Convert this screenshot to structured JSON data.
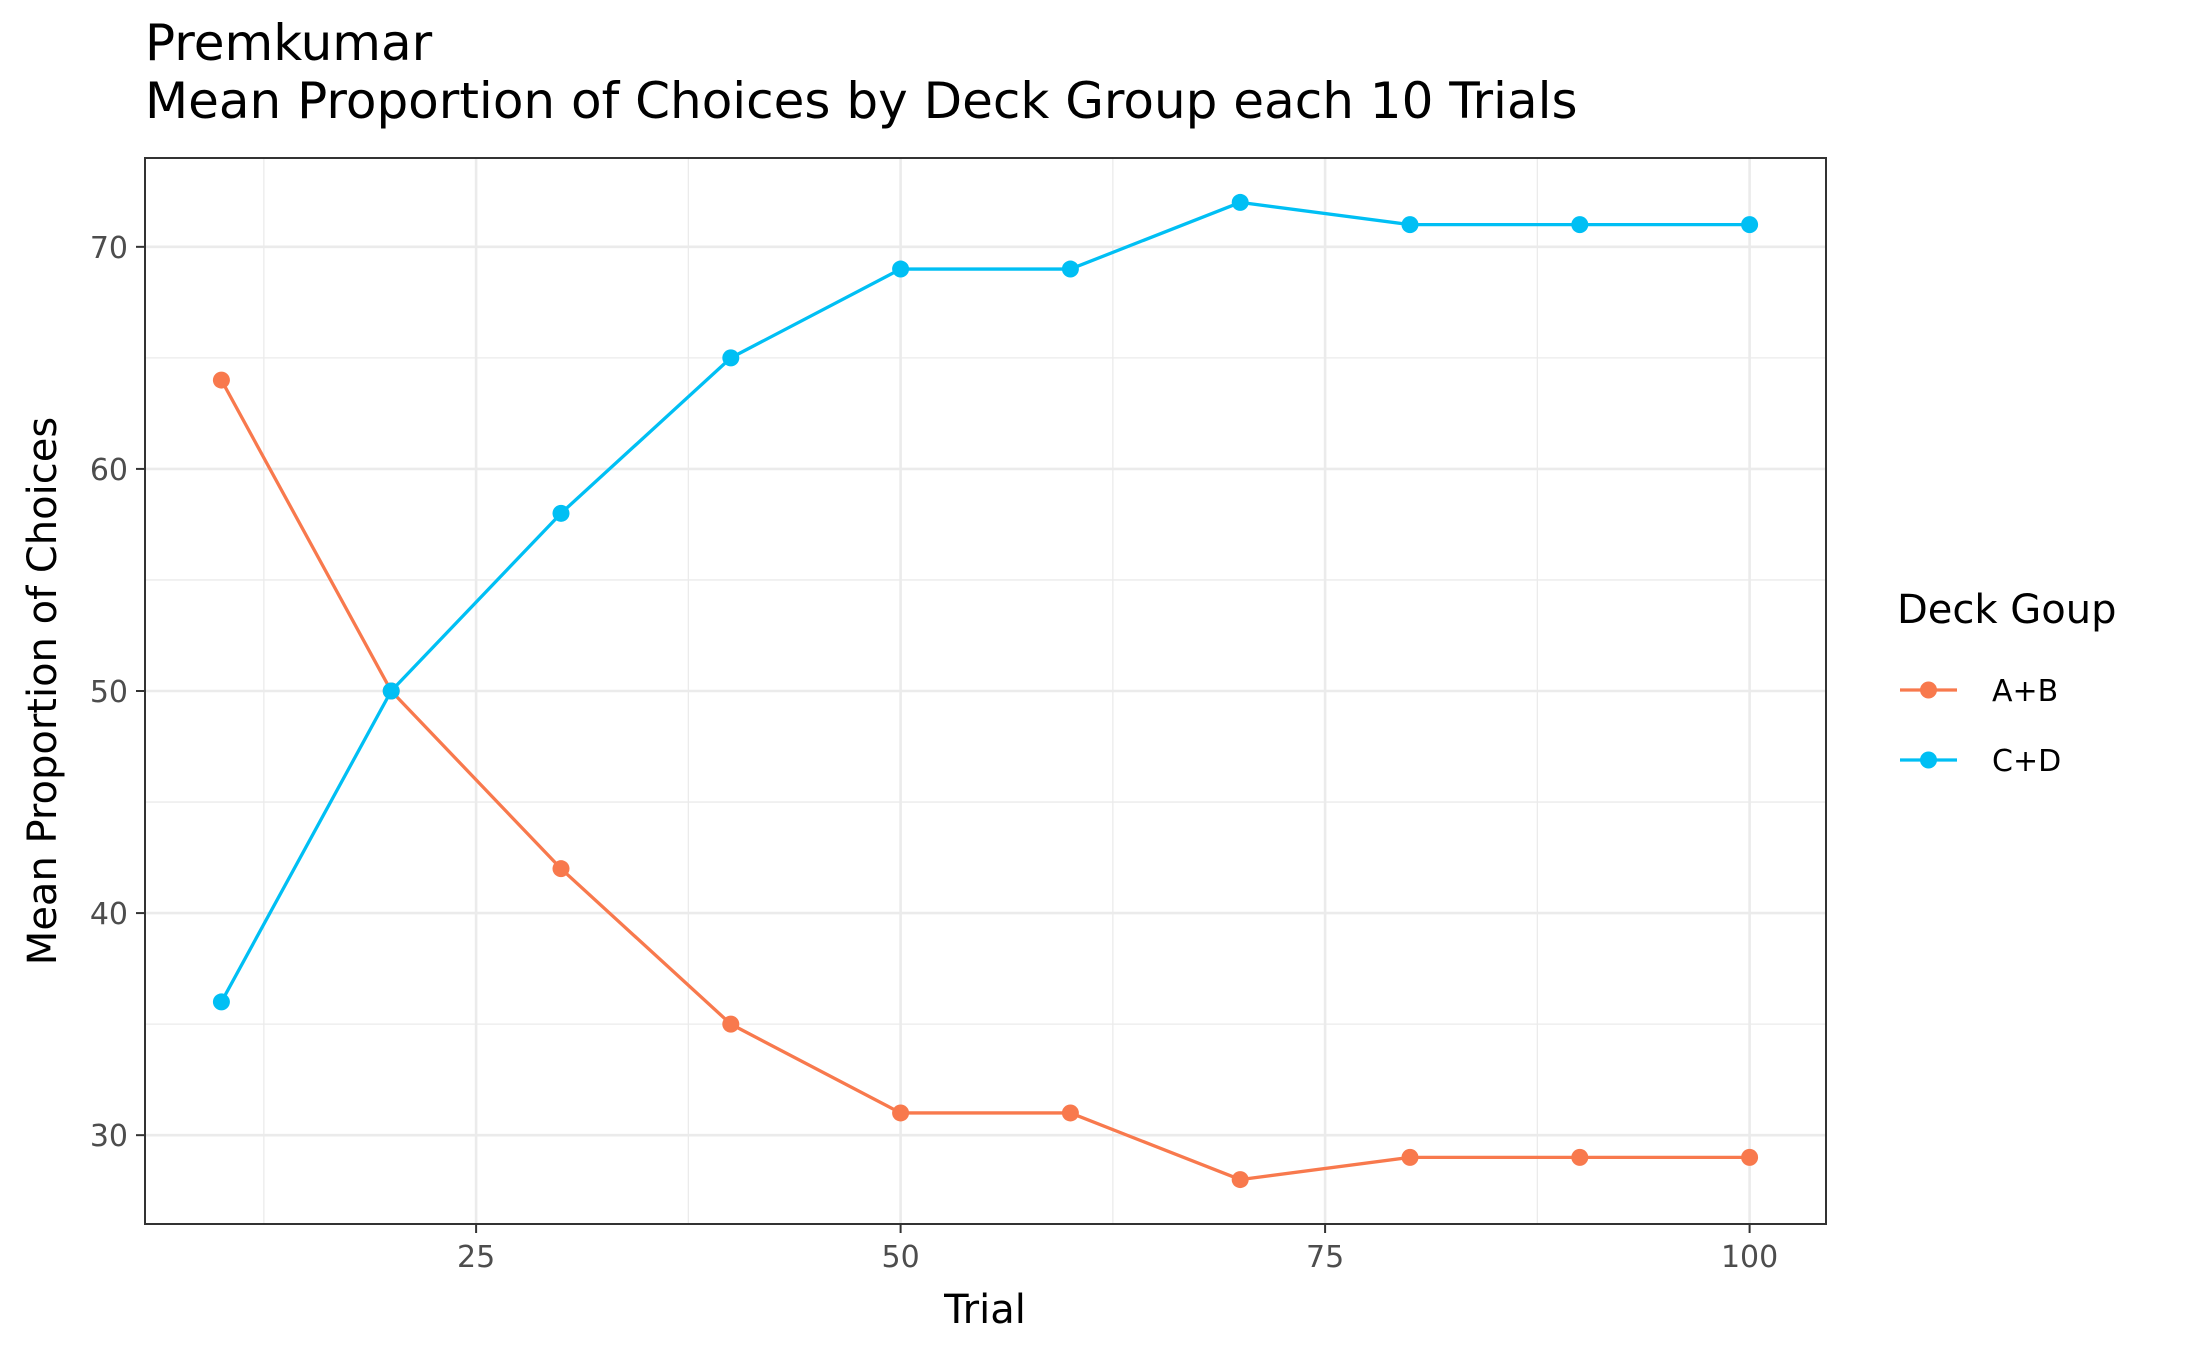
{
  "chart_data": {
    "type": "line",
    "title": "Premkumar",
    "subtitle": "Mean Proportion of Choices by Deck Group each 10 Trials",
    "xlabel": "Trial",
    "ylabel": "Mean Proportion of Choices",
    "x": [
      10,
      20,
      30,
      40,
      50,
      60,
      70,
      80,
      90,
      100
    ],
    "xlim": [
      5.5,
      104.5
    ],
    "ylim": [
      26,
      74
    ],
    "x_ticks": [
      25,
      50,
      75,
      100
    ],
    "x_tick_labels": [
      "25",
      "50",
      "75",
      "100"
    ],
    "y_ticks": [
      30,
      40,
      50,
      60,
      70
    ],
    "y_tick_labels": [
      "30",
      "40",
      "50",
      "60",
      "70"
    ],
    "grid": true,
    "legend": {
      "title": "Deck Goup",
      "position": "right"
    },
    "series": [
      {
        "name": "A+B",
        "color": "#F8794D",
        "values": [
          64,
          50,
          42,
          35,
          31,
          31,
          28,
          29,
          29,
          29
        ]
      },
      {
        "name": "C+D",
        "color": "#00BFF4",
        "values": [
          36,
          50,
          58,
          65,
          69,
          69,
          72,
          71,
          71,
          71
        ]
      }
    ]
  }
}
